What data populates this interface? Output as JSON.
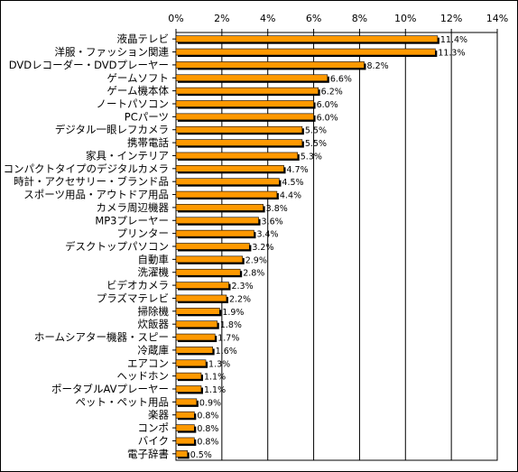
{
  "chart_data": {
    "type": "bar",
    "orientation": "horizontal",
    "title": "",
    "xlabel": "",
    "ylabel": "",
    "xlim": [
      0,
      14
    ],
    "x_ticks": [
      "0%",
      "2%",
      "4%",
      "6%",
      "8%",
      "10%",
      "12%",
      "14%"
    ],
    "grid": true,
    "bar_color": "#ff9900",
    "shadow_color": "#000000",
    "categories": [
      "液晶テレビ",
      "洋服・ファッション関連",
      "DVDレコーダー・DVDプレーヤー",
      "ゲームソフト",
      "ゲーム機本体",
      "ノートパソコン",
      "PCパーツ",
      "デジタル一眼レフカメラ",
      "携帯電話",
      "家具・インテリア",
      "コンパクトタイプのデジタルカメラ",
      "時計・アクセサリー・ブランド品",
      "スポーツ用品・アウトドア用品",
      "カメラ周辺機器",
      "MP3プレーヤー",
      "プリンター",
      "デスクトップパソコン",
      "自動車",
      "洗濯機",
      "ビデオカメラ",
      "プラズマテレビ",
      "掃除機",
      "炊飯器",
      "ホームシアター機器・スピー",
      "冷蔵庫",
      "エアコン",
      "ヘッドホン",
      "ポータブルAVプレーヤー",
      "ペット・ペット用品",
      "楽器",
      "コンポ",
      "バイク",
      "電子辞書"
    ],
    "values": [
      11.4,
      11.3,
      8.2,
      6.6,
      6.2,
      6.0,
      6.0,
      5.5,
      5.5,
      5.3,
      4.7,
      4.5,
      4.4,
      3.8,
      3.6,
      3.4,
      3.2,
      2.9,
      2.8,
      2.3,
      2.2,
      1.9,
      1.8,
      1.7,
      1.6,
      1.3,
      1.1,
      1.1,
      0.9,
      0.8,
      0.8,
      0.8,
      0.5
    ],
    "value_labels": [
      "11.4%",
      "11.3%",
      "8.2%",
      "6.6%",
      "6.2%",
      "6.0%",
      "6.0%",
      "5.5%",
      "5.5%",
      "5.3%",
      "4.7%",
      "4.5%",
      "4.4%",
      "3.8%",
      "3.6%",
      "3.4%",
      "3.2%",
      "2.9%",
      "2.8%",
      "2.3%",
      "2.2%",
      "1.9%",
      "1.8%",
      "1.7%",
      "1.6%",
      "1.3%",
      "1.1%",
      "1.1%",
      "0.9%",
      "0.8%",
      "0.8%",
      "0.8%",
      "0.5%"
    ]
  }
}
